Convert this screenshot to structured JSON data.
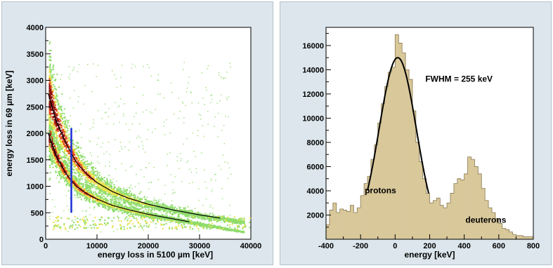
{
  "chart_data": [
    {
      "type": "heatmap",
      "title": "",
      "xlabel": "energy loss in 5100 µm [keV]",
      "ylabel": "energy loss in 69 µm [keV]",
      "xlim": [
        0,
        40000
      ],
      "ylim": [
        0,
        4000
      ],
      "xticks": [
        0,
        10000,
        20000,
        30000,
        40000
      ],
      "yticks": [
        0,
        500,
        1000,
        1500,
        2000,
        2500,
        3000,
        3500,
        4000
      ],
      "grid": false,
      "colors": {
        "low": "#8fdc6a",
        "mid": "#e8e24a",
        "high": "#e24a20",
        "peak": "#8a1010",
        "fit_curve": "#000000",
        "cut_line": "#1a2fd6"
      },
      "bands": [
        {
          "name": "",
          "x": [
            500,
            2000,
            4000,
            6000,
            8000,
            10000,
            13000,
            16000,
            20000,
            24000,
            28000
          ],
          "y": [
            2000,
            1580,
            1230,
            1000,
            860,
            760,
            640,
            560,
            470,
            400,
            330
          ]
        },
        {
          "name": "",
          "x": [
            500,
            2000,
            4000,
            6000,
            8000,
            10000,
            13000,
            16000,
            20000,
            25000,
            30000,
            34000
          ],
          "y": [
            2750,
            2250,
            1800,
            1450,
            1230,
            1070,
            900,
            780,
            660,
            550,
            460,
            400
          ]
        }
      ],
      "vertical_cut": {
        "x": 5000,
        "y_range": [
          500,
          2100
        ]
      }
    },
    {
      "type": "histogram",
      "title": "",
      "xlabel": "energy [keV]",
      "ylabel": "",
      "xlim": [
        -400,
        800
      ],
      "ylim": [
        0,
        17500
      ],
      "xticks": [
        -400,
        -200,
        0,
        200,
        400,
        600,
        800
      ],
      "yticks": [
        2000,
        4000,
        6000,
        8000,
        10000,
        12000,
        14000,
        16000
      ],
      "grid": false,
      "bin_width": 20,
      "bin_start": -400,
      "values": [
        1200,
        2400,
        3000,
        2200,
        2500,
        2400,
        2300,
        2800,
        2200,
        2600,
        3600,
        4600,
        5200,
        6600,
        7800,
        9600,
        11200,
        12600,
        13800,
        14200,
        16900,
        16200,
        15400,
        14000,
        13200,
        10600,
        8000,
        6400,
        5000,
        3800,
        3000,
        3200,
        3400,
        2800,
        2600,
        3000,
        3800,
        4600,
        5000,
        4900,
        5400,
        6800,
        6600,
        6000,
        5400,
        4200,
        3200,
        2600,
        2200,
        1700,
        1300,
        900,
        800,
        600,
        400,
        300,
        300,
        200,
        200,
        200
      ],
      "fit": {
        "type": "gaussian",
        "mean": 15,
        "sigma": 108,
        "amplitude": 15000,
        "x_range": [
          -160,
          195
        ]
      },
      "annotations": [
        "FWHM = 255 keV",
        "protons",
        "deuterons"
      ],
      "colors": {
        "fill": "#d8c89a",
        "outline": "#8a7a50",
        "fit": "#000000"
      }
    }
  ]
}
